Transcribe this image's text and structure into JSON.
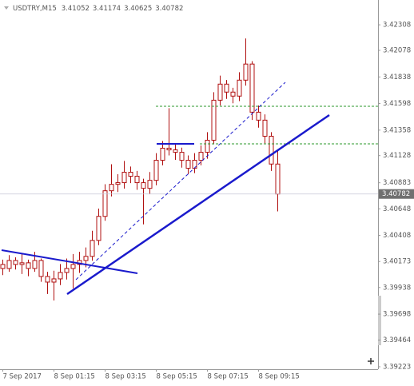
{
  "chart_data": {
    "type": "candlestick",
    "symbol": "USDTRY,M15",
    "categories": [
      "7 Sep 2017",
      null,
      null,
      null,
      null,
      null,
      null,
      null,
      "8 Sep 01:15",
      null,
      null,
      null,
      null,
      null,
      null,
      null,
      "8 Sep 03:15",
      null,
      null,
      null,
      null,
      null,
      null,
      null,
      "8 Sep 05:15",
      null,
      null,
      null,
      null,
      null,
      null,
      null,
      "8 Sep 07:15",
      null,
      null,
      null,
      null,
      null,
      null,
      null,
      "8 Sep 09:15",
      null,
      null,
      null
    ],
    "open": [
      3.40146,
      3.4011,
      3.40182,
      3.40146,
      3.40161,
      3.4011,
      3.40182,
      3.40038,
      3.39987,
      3.40016,
      3.40074,
      3.4011,
      3.40146,
      3.40182,
      3.40219,
      3.40363,
      3.4058,
      3.40811,
      3.40869,
      3.40884,
      3.40978,
      3.40942,
      3.40884,
      3.40833,
      3.40905,
      3.41086,
      3.41195,
      3.4118,
      3.41158,
      3.41086,
      3.41014,
      3.41086,
      3.41158,
      3.41267,
      3.41628,
      3.41773,
      3.41701,
      3.41665,
      3.41809,
      3.41954,
      3.4152,
      3.41448,
      3.41303,
      3.41052
    ],
    "high": [
      3.4019,
      3.4023,
      3.4021,
      3.4024,
      3.4019,
      3.4026,
      3.402,
      3.4008,
      3.4009,
      3.4015,
      3.402,
      3.4024,
      3.4026,
      3.403,
      3.4045,
      3.4065,
      3.4087,
      3.4105,
      3.4096,
      3.4108,
      3.4103,
      3.4099,
      3.4092,
      3.4098,
      3.4115,
      3.4126,
      3.41556,
      3.4124,
      3.412,
      3.4113,
      3.4115,
      3.4122,
      3.4134,
      3.417,
      3.4185,
      3.4181,
      3.4174,
      3.4188,
      3.42185,
      3.4198,
      3.4158,
      3.415,
      3.4134,
      3.41174
    ],
    "low": [
      3.4005,
      3.4008,
      3.401,
      3.4006,
      3.4004,
      3.4008,
      3.3999,
      3.3988,
      3.39821,
      3.3996,
      3.4001,
      3.3993,
      3.4007,
      3.4012,
      3.4018,
      3.4032,
      3.4054,
      3.4076,
      3.408,
      3.4083,
      3.4088,
      3.4082,
      3.40508,
      3.4078,
      3.4086,
      3.4104,
      3.4113,
      3.4109,
      3.4102,
      3.4096,
      3.4097,
      3.4104,
      3.411,
      3.4123,
      3.4158,
      3.4164,
      3.416,
      3.4162,
      3.4176,
      3.4145,
      3.4138,
      3.4124,
      3.4099,
      3.40625
    ],
    "close": [
      3.4011,
      3.40182,
      3.40146,
      3.40161,
      3.4011,
      3.40182,
      3.40038,
      3.39987,
      3.40016,
      3.40074,
      3.4011,
      3.40146,
      3.40182,
      3.40219,
      3.40363,
      3.4058,
      3.40811,
      3.40869,
      3.40884,
      3.40978,
      3.40942,
      3.40884,
      3.40833,
      3.40905,
      3.41086,
      3.41195,
      3.4118,
      3.41158,
      3.41086,
      3.41014,
      3.41086,
      3.41158,
      3.41267,
      3.41628,
      3.41773,
      3.41701,
      3.41665,
      3.41809,
      3.41954,
      3.4152,
      3.41448,
      3.41303,
      3.41052,
      3.40782
    ],
    "color": "#b01010",
    "ylim": [
      3.39201,
      3.42532
    ],
    "yticks": [
      3.42308,
      3.42078,
      3.41838,
      3.41598,
      3.41358,
      3.41128,
      3.40883,
      3.40648,
      3.40408,
      3.40173,
      3.39938,
      3.39698,
      3.39464,
      3.39223
    ]
  }
}
